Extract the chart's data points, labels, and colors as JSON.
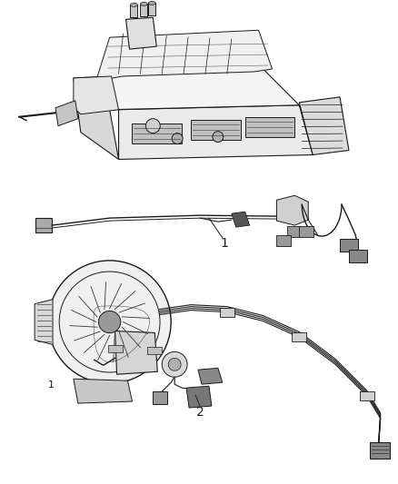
{
  "background_color": "#ffffff",
  "line_color": "#1a1a1a",
  "dark_gray": "#333333",
  "mid_gray": "#666666",
  "light_gray": "#aaaaaa",
  "lighter_gray": "#cccccc",
  "label_1": "1",
  "label_2": "2",
  "fig_width": 4.38,
  "fig_height": 5.33,
  "dpi": 100
}
